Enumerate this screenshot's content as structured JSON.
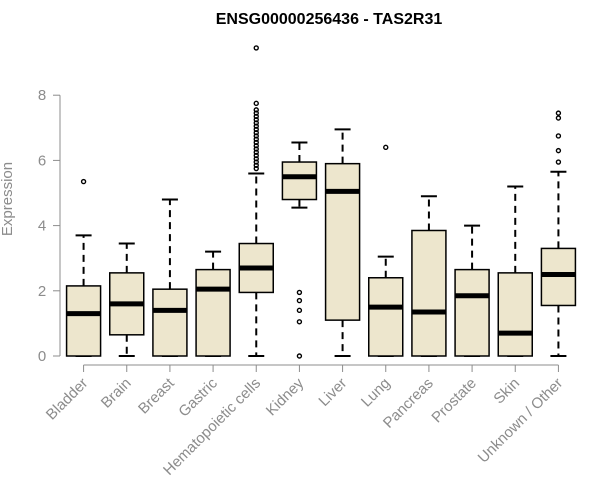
{
  "chart_data": {
    "type": "boxplot",
    "title": "ENSG00000256436 - TAS2R31",
    "xlabel": "",
    "ylabel": "Expression",
    "ylim": [
      0,
      9.6
    ],
    "yticks": [
      0,
      2,
      4,
      6,
      8
    ],
    "grid": false,
    "colors": {
      "box_fill": "#ede6cd",
      "stroke": "#000000",
      "axis": "#8c8c8c"
    },
    "categories": [
      "Bladder",
      "Brain",
      "Breast",
      "Gastric",
      "Hematopoietic cells",
      "Kidney",
      "Liver",
      "Lung",
      "Pancreas",
      "Prostate",
      "Skin",
      "Unknown / Other"
    ],
    "boxes": [
      {
        "min": 0,
        "q1": 0,
        "median": 1.3,
        "q3": 2.15,
        "max": 3.7,
        "outliers": [
          5.35
        ]
      },
      {
        "min": 0,
        "q1": 0.65,
        "median": 1.6,
        "q3": 2.55,
        "max": 3.45,
        "outliers": []
      },
      {
        "min": 0,
        "q1": 0,
        "median": 1.4,
        "q3": 2.05,
        "max": 4.8,
        "outliers": []
      },
      {
        "min": 0,
        "q1": 0,
        "median": 2.05,
        "q3": 2.65,
        "max": 3.2,
        "outliers": []
      },
      {
        "min": 0,
        "q1": 1.95,
        "median": 2.7,
        "q3": 3.45,
        "max": 5.6,
        "outliers": [
          5.75,
          5.85,
          5.95,
          6.05,
          6.15,
          6.25,
          6.35,
          6.45,
          6.55,
          6.65,
          6.75,
          6.85,
          6.95,
          7.05,
          7.15,
          7.25,
          7.35,
          7.45,
          7.55,
          7.75,
          9.45
        ]
      },
      {
        "min": 4.55,
        "q1": 4.8,
        "median": 5.5,
        "q3": 5.95,
        "max": 6.55,
        "outliers": [
          0,
          1.05,
          1.4,
          1.7,
          1.95
        ]
      },
      {
        "min": 0,
        "q1": 1.1,
        "median": 5.05,
        "q3": 5.9,
        "max": 6.95,
        "outliers": []
      },
      {
        "min": 0,
        "q1": 0,
        "median": 1.5,
        "q3": 2.4,
        "max": 3.05,
        "outliers": [
          6.4
        ]
      },
      {
        "min": 0,
        "q1": 0,
        "median": 1.35,
        "q3": 3.85,
        "max": 4.9,
        "outliers": []
      },
      {
        "min": 0,
        "q1": 0,
        "median": 1.85,
        "q3": 2.65,
        "max": 4.0,
        "outliers": []
      },
      {
        "min": 0,
        "q1": 0,
        "median": 0.7,
        "q3": 2.55,
        "max": 5.2,
        "outliers": []
      },
      {
        "min": 0,
        "q1": 1.55,
        "median": 2.5,
        "q3": 3.3,
        "max": 5.65,
        "outliers": [
          5.95,
          6.3,
          6.75,
          7.3,
          7.45
        ]
      }
    ]
  }
}
